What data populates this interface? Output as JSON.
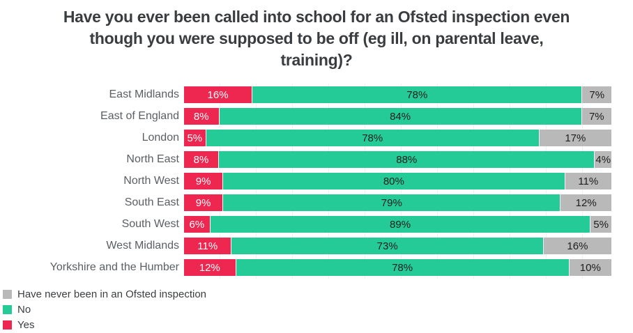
{
  "title_lines": [
    "Have you ever been called into school for an Ofsted inspection even",
    "though you were supposed to be off (eg ill, on parental leave,",
    "training)?"
  ],
  "chart_data": {
    "type": "bar",
    "subtype": "horizontal-stacked",
    "title": "Have you ever been called into school for an Ofsted inspection even though you were supposed to be off (eg ill, on parental leave, training)?",
    "categories": [
      "East Midlands",
      "East of England",
      "London",
      "North East",
      "North West",
      "South East",
      "South West",
      "West Midlands",
      "Yorkshire and the Humber"
    ],
    "series": [
      {
        "name": "Yes",
        "color": "#ee2750",
        "label_color": "#ffffff",
        "values": [
          16,
          8,
          5,
          8,
          9,
          9,
          6,
          11,
          12
        ]
      },
      {
        "name": "No",
        "color": "#25cb97",
        "label_color": "#1d1d1b",
        "values": [
          78,
          84,
          78,
          88,
          80,
          79,
          89,
          73,
          78
        ]
      },
      {
        "name": "Have never been in an Ofsted inspection",
        "color": "#b9b9b9",
        "label_color": "#1d1d1b",
        "values": [
          7,
          7,
          17,
          4,
          11,
          12,
          5,
          16,
          10
        ]
      }
    ],
    "value_suffix": "%",
    "xlim": [
      0,
      100
    ],
    "grid": true,
    "legend": {
      "position": "bottom-left",
      "items": [
        {
          "label": "Have never been in an Ofsted inspection",
          "color": "#b9b9b9"
        },
        {
          "label": "No",
          "color": "#25cb97"
        },
        {
          "label": "Yes",
          "color": "#ee2750"
        }
      ]
    }
  }
}
